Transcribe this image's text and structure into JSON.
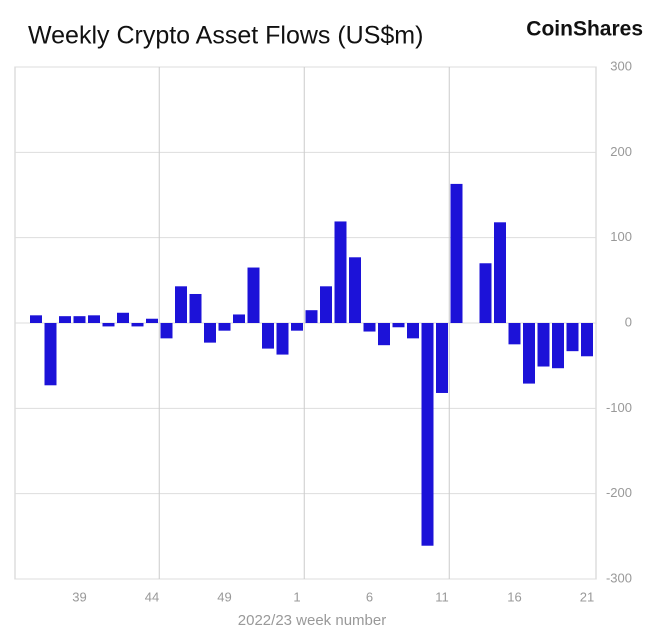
{
  "chart_data": {
    "type": "bar",
    "title": "Weekly Crypto Asset Flows (US$m)",
    "brand": "CoinShares",
    "x_label": "2022/23 week number",
    "categories": [
      null,
      null,
      null,
      "39",
      null,
      null,
      null,
      null,
      "44",
      null,
      null,
      null,
      null,
      "49",
      null,
      null,
      null,
      null,
      "1",
      null,
      null,
      null,
      null,
      "6",
      null,
      null,
      null,
      null,
      "11",
      null,
      null,
      null,
      null,
      "16",
      null,
      null,
      null,
      null,
      "21"
    ],
    "values": [
      9,
      -73,
      8,
      8,
      9,
      -4,
      12,
      -4,
      5,
      -18,
      43,
      34,
      -23,
      -9,
      10,
      65,
      -30,
      -37,
      -9,
      15,
      43,
      119,
      77,
      -10,
      -26,
      -5,
      -18,
      -261,
      -82,
      163,
      0,
      70,
      118,
      -25,
      -71,
      -51,
      -53,
      -33,
      -39
    ],
    "color": "#1c12d8",
    "ylim": [
      -300,
      300
    ],
    "yticks": [
      -300,
      -200,
      -100,
      0,
      100,
      200,
      300
    ],
    "grid": true
  }
}
